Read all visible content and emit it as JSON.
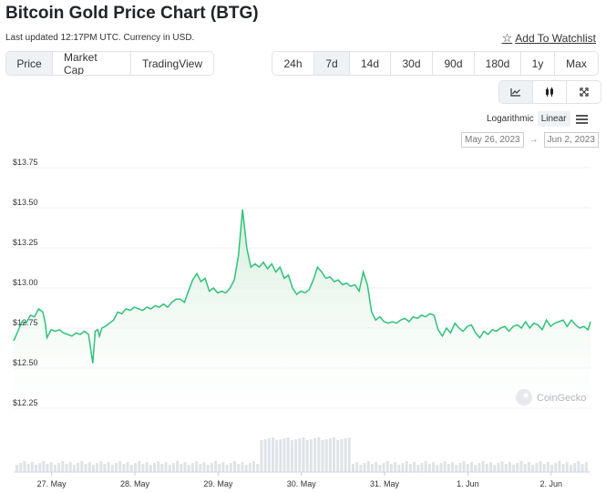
{
  "header": {
    "title": "Bitcoin Gold Price Chart (BTG)",
    "subtitle": "Last updated 12:17PM UTC. Currency in USD.",
    "watchlist_label": "Add To Watchlist"
  },
  "view_tabs": [
    "Price",
    "Market Cap",
    "TradingView"
  ],
  "active_view": "Price",
  "range_tabs": [
    "24h",
    "7d",
    "14d",
    "30d",
    "90d",
    "180d",
    "1y",
    "Max"
  ],
  "active_range": "7d",
  "chart_type_icons": [
    "line-chart-icon",
    "candlestick-icon",
    "fullscreen-icon"
  ],
  "scale_options": [
    "Logarithmic",
    "Linear"
  ],
  "active_scale": "Linear",
  "date_range": {
    "from": "May 26, 2023",
    "to": "Jun 2, 2023",
    "arrow": "→"
  },
  "watermark": "CoinGecko",
  "colors": {
    "line": "#2fc27a",
    "fill_top": "#d9f2e1",
    "volume": "#dfe3e8",
    "grid": "#f0f0f0"
  },
  "chart_data": {
    "type": "area",
    "title": "Bitcoin Gold Price Chart (BTG)",
    "y_ticks": [
      "$13.75",
      "$13.50",
      "$13.25",
      "$13.00",
      "$12.75",
      "$12.50",
      "$12.25"
    ],
    "y_tick_values": [
      13.75,
      13.5,
      13.25,
      13.0,
      12.75,
      12.5,
      12.25
    ],
    "ylim": [
      12.15,
      13.8
    ],
    "x_ticks": [
      "27. May",
      "28. May",
      "29. May",
      "30. May",
      "31. May",
      "1. Jun",
      "2. Jun"
    ],
    "x_tick_values": [
      1,
      2,
      3,
      4,
      5,
      6,
      7
    ],
    "xlim": [
      0.5,
      7.43
    ],
    "grid": true,
    "series": [
      {
        "values": [
          [
            0.5,
            12.67
          ],
          [
            0.55,
            12.73
          ],
          [
            0.6,
            12.79
          ],
          [
            0.65,
            12.78
          ],
          [
            0.7,
            12.83
          ],
          [
            0.75,
            12.82
          ],
          [
            0.8,
            12.87
          ],
          [
            0.85,
            12.85
          ],
          [
            0.88,
            12.78
          ],
          [
            0.9,
            12.69
          ],
          [
            0.95,
            12.74
          ],
          [
            1.0,
            12.73
          ],
          [
            1.05,
            12.74
          ],
          [
            1.1,
            12.72
          ],
          [
            1.15,
            12.71
          ],
          [
            1.2,
            12.7
          ],
          [
            1.25,
            12.72
          ],
          [
            1.3,
            12.71
          ],
          [
            1.35,
            12.73
          ],
          [
            1.4,
            12.71
          ],
          [
            1.45,
            12.53
          ],
          [
            1.48,
            12.73
          ],
          [
            1.51,
            12.74
          ],
          [
            1.53,
            12.7
          ],
          [
            1.56,
            12.75
          ],
          [
            1.6,
            12.76
          ],
          [
            1.65,
            12.78
          ],
          [
            1.7,
            12.8
          ],
          [
            1.75,
            12.85
          ],
          [
            1.8,
            12.84
          ],
          [
            1.85,
            12.87
          ],
          [
            1.9,
            12.86
          ],
          [
            1.95,
            12.88
          ],
          [
            2.0,
            12.87
          ],
          [
            2.05,
            12.86
          ],
          [
            2.1,
            12.88
          ],
          [
            2.15,
            12.87
          ],
          [
            2.2,
            12.89
          ],
          [
            2.25,
            12.88
          ],
          [
            2.3,
            12.9
          ],
          [
            2.35,
            12.88
          ],
          [
            2.4,
            12.91
          ],
          [
            2.45,
            12.93
          ],
          [
            2.5,
            12.93
          ],
          [
            2.55,
            12.91
          ],
          [
            2.6,
            12.98
          ],
          [
            2.65,
            13.05
          ],
          [
            2.7,
            13.09
          ],
          [
            2.75,
            13.04
          ],
          [
            2.8,
            13.06
          ],
          [
            2.85,
            12.98
          ],
          [
            2.9,
            13.0
          ],
          [
            2.95,
            12.97
          ],
          [
            3.0,
            12.98
          ],
          [
            3.05,
            12.97
          ],
          [
            3.1,
            13.0
          ],
          [
            3.15,
            13.05
          ],
          [
            3.2,
            13.2
          ],
          [
            3.25,
            13.49
          ],
          [
            3.3,
            13.25
          ],
          [
            3.35,
            13.13
          ],
          [
            3.4,
            13.15
          ],
          [
            3.45,
            13.13
          ],
          [
            3.5,
            13.16
          ],
          [
            3.55,
            13.12
          ],
          [
            3.6,
            13.15
          ],
          [
            3.65,
            13.1
          ],
          [
            3.7,
            13.13
          ],
          [
            3.75,
            13.06
          ],
          [
            3.8,
            13.08
          ],
          [
            3.85,
            13.0
          ],
          [
            3.9,
            12.96
          ],
          [
            3.95,
            12.98
          ],
          [
            4.0,
            12.97
          ],
          [
            4.05,
            12.99
          ],
          [
            4.1,
            13.05
          ],
          [
            4.15,
            13.13
          ],
          [
            4.2,
            13.1
          ],
          [
            4.25,
            13.06
          ],
          [
            4.3,
            13.07
          ],
          [
            4.35,
            13.04
          ],
          [
            4.4,
            13.05
          ],
          [
            4.45,
            13.02
          ],
          [
            4.5,
            13.03
          ],
          [
            4.55,
            13.01
          ],
          [
            4.6,
            13.02
          ],
          [
            4.65,
            12.98
          ],
          [
            4.7,
            13.1
          ],
          [
            4.75,
            13.02
          ],
          [
            4.8,
            12.85
          ],
          [
            4.85,
            12.8
          ],
          [
            4.9,
            12.82
          ],
          [
            4.95,
            12.79
          ],
          [
            5.0,
            12.78
          ],
          [
            5.05,
            12.79
          ],
          [
            5.1,
            12.78
          ],
          [
            5.15,
            12.8
          ],
          [
            5.2,
            12.81
          ],
          [
            5.25,
            12.79
          ],
          [
            5.3,
            12.82
          ],
          [
            5.35,
            12.81
          ],
          [
            5.4,
            12.83
          ],
          [
            5.45,
            12.82
          ],
          [
            5.5,
            12.84
          ],
          [
            5.55,
            12.83
          ],
          [
            5.6,
            12.74
          ],
          [
            5.65,
            12.7
          ],
          [
            5.7,
            12.75
          ],
          [
            5.75,
            12.72
          ],
          [
            5.8,
            12.78
          ],
          [
            5.85,
            12.75
          ],
          [
            5.9,
            12.73
          ],
          [
            5.95,
            12.76
          ],
          [
            6.0,
            12.77
          ],
          [
            6.05,
            12.72
          ],
          [
            6.1,
            12.69
          ],
          [
            6.15,
            12.73
          ],
          [
            6.2,
            12.71
          ],
          [
            6.25,
            12.74
          ],
          [
            6.3,
            12.73
          ],
          [
            6.35,
            12.75
          ],
          [
            6.4,
            12.76
          ],
          [
            6.45,
            12.73
          ],
          [
            6.5,
            12.76
          ],
          [
            6.55,
            12.77
          ],
          [
            6.6,
            12.75
          ],
          [
            6.65,
            12.79
          ],
          [
            6.7,
            12.75
          ],
          [
            6.75,
            12.78
          ],
          [
            6.8,
            12.77
          ],
          [
            6.85,
            12.74
          ],
          [
            6.9,
            12.8
          ],
          [
            6.95,
            12.76
          ],
          [
            7.0,
            12.78
          ],
          [
            7.05,
            12.79
          ],
          [
            7.1,
            12.8
          ],
          [
            7.15,
            12.76
          ],
          [
            7.2,
            12.8
          ],
          [
            7.25,
            12.77
          ],
          [
            7.3,
            12.75
          ],
          [
            7.35,
            12.76
          ],
          [
            7.4,
            12.74
          ],
          [
            7.43,
            12.79
          ]
        ]
      }
    ]
  }
}
